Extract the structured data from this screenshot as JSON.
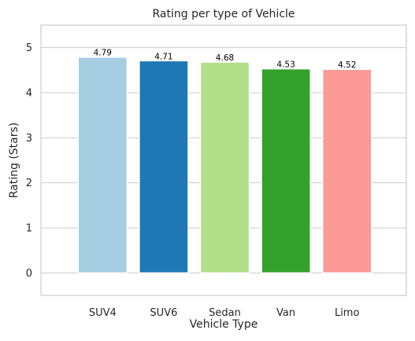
{
  "chart_data": {
    "type": "bar",
    "title": "Rating per type of Vehicle",
    "xlabel": "Vehicle Type",
    "ylabel": "Rating (Stars)",
    "categories": [
      "SUV4",
      "SUV6",
      "Sedan",
      "Van",
      "Limo"
    ],
    "values": [
      4.79,
      4.71,
      4.68,
      4.53,
      4.52
    ],
    "value_labels": [
      "4.79",
      "4.71",
      "4.68",
      "4.53",
      "4.52"
    ],
    "colors": [
      "#a6cee3",
      "#1f78b4",
      "#b2df8a",
      "#33a02c",
      "#fb9a99"
    ],
    "ylim": [
      -0.5,
      5.5
    ],
    "yticks": [
      0,
      1,
      2,
      3,
      4,
      5
    ],
    "grid": true,
    "legend": "none"
  }
}
